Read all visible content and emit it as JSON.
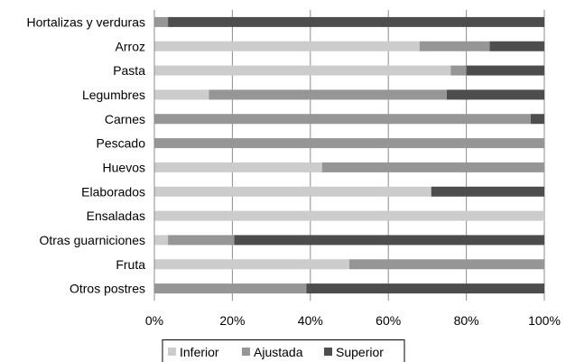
{
  "chart_data": {
    "type": "bar",
    "orientation": "horizontal",
    "stacked": "percent",
    "title": "",
    "xlabel": "",
    "ylabel": "",
    "xlim": [
      0,
      100
    ],
    "x_ticks": [
      "0%",
      "20%",
      "40%",
      "60%",
      "80%",
      "100%"
    ],
    "grid": "vertical",
    "legend_position": "bottom",
    "categories": [
      "Hortalizas y verduras",
      "Arroz",
      "Pasta",
      "Legumbres",
      "Carnes",
      "Pescado",
      "Huevos",
      "Elaborados",
      "Ensaladas",
      "Otras guarniciones",
      "Fruta",
      "Otros postres"
    ],
    "series": [
      {
        "name": "Inferior",
        "color": "#cccccc",
        "values": [
          0,
          68,
          76,
          14,
          0,
          0,
          43,
          71,
          100,
          3.5,
          50,
          0
        ]
      },
      {
        "name": "Ajustada",
        "color": "#969696",
        "values": [
          3.5,
          18,
          4,
          61,
          96.5,
          100,
          57,
          0,
          0,
          17,
          50,
          39
        ]
      },
      {
        "name": "Superior",
        "color": "#4d4d4d",
        "values": [
          96.5,
          14,
          20,
          25,
          3.5,
          0,
          0,
          29,
          0,
          79.5,
          0,
          61
        ]
      }
    ]
  }
}
